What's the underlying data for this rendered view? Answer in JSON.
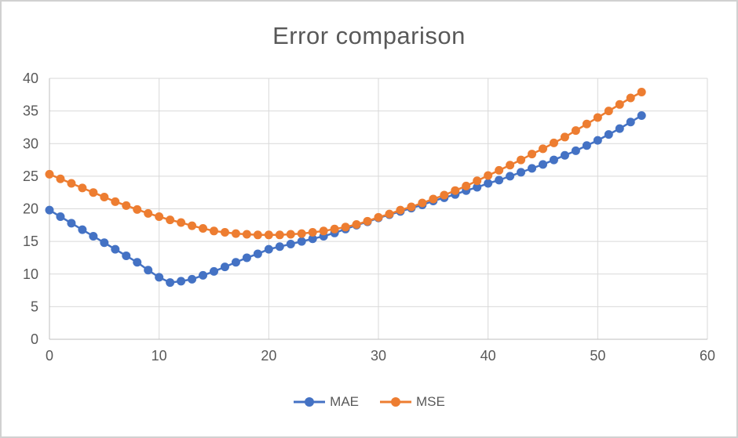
{
  "window": {
    "background": "#ffffff",
    "border_color": "#d1d1d1"
  },
  "chart_data": {
    "type": "line",
    "title": "Error comparison",
    "xlabel": "",
    "ylabel": "",
    "xlim": [
      0,
      60
    ],
    "ylim": [
      0,
      40
    ],
    "x_ticks": [
      0,
      10,
      20,
      30,
      40,
      50,
      60
    ],
    "y_ticks": [
      0,
      5,
      10,
      15,
      20,
      25,
      30,
      35,
      40
    ],
    "grid": true,
    "legend_position": "bottom",
    "colors": {
      "title_text": "#595959",
      "tick_text": "#595959",
      "gridline": "#d9d9d9",
      "axis_line": "#bfbfbf",
      "mae_series": "#4472c4",
      "mse_series": "#ed7d31"
    },
    "x": [
      0,
      1,
      2,
      3,
      4,
      5,
      6,
      7,
      8,
      9,
      10,
      11,
      12,
      13,
      14,
      15,
      16,
      17,
      18,
      19,
      20,
      21,
      22,
      23,
      24,
      25,
      26,
      27,
      28,
      29,
      30,
      31,
      32,
      33,
      34,
      35,
      36,
      37,
      38,
      39,
      40,
      41,
      42,
      43,
      44,
      45,
      46,
      47,
      48,
      49,
      50,
      51,
      52,
      53,
      54
    ],
    "series": [
      {
        "name": "MAE",
        "color": "#4472c4",
        "values": [
          19.8,
          18.8,
          17.8,
          16.8,
          15.8,
          14.8,
          13.8,
          12.8,
          11.8,
          10.6,
          9.5,
          8.7,
          8.9,
          9.2,
          9.8,
          10.4,
          11.1,
          11.8,
          12.5,
          13.1,
          13.8,
          14.2,
          14.6,
          15.0,
          15.4,
          15.8,
          16.3,
          16.9,
          17.5,
          18.0,
          18.6,
          19.1,
          19.6,
          20.1,
          20.6,
          21.2,
          21.7,
          22.2,
          22.8,
          23.3,
          23.9,
          24.4,
          25.0,
          25.6,
          26.2,
          26.8,
          27.5,
          28.2,
          28.9,
          29.7,
          30.5,
          31.4,
          32.3,
          33.3,
          34.3
        ]
      },
      {
        "name": "MSE",
        "color": "#ed7d31",
        "values": [
          25.3,
          24.6,
          23.9,
          23.2,
          22.5,
          21.8,
          21.1,
          20.5,
          19.9,
          19.3,
          18.8,
          18.3,
          17.9,
          17.4,
          17.0,
          16.6,
          16.4,
          16.2,
          16.1,
          16.0,
          16.0,
          16.0,
          16.1,
          16.2,
          16.4,
          16.6,
          16.9,
          17.2,
          17.6,
          18.1,
          18.7,
          19.2,
          19.8,
          20.3,
          20.9,
          21.5,
          22.1,
          22.8,
          23.5,
          24.3,
          25.1,
          25.9,
          26.7,
          27.5,
          28.4,
          29.2,
          30.1,
          31.0,
          32.0,
          33.0,
          34.0,
          35.0,
          36.0,
          37.0,
          37.9
        ]
      }
    ]
  }
}
